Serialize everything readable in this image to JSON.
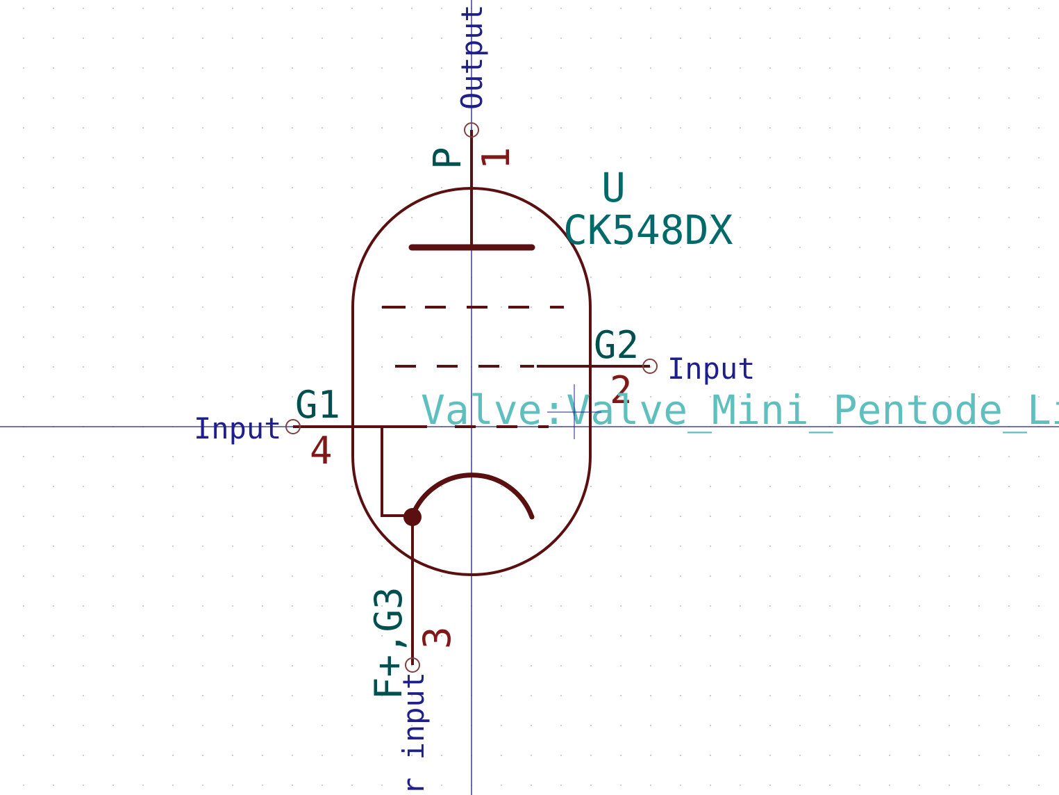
{
  "colors": {
    "background": "#ffffff",
    "grid": "#9a9a9a",
    "axis": "#1e1e8c",
    "body": "#5a1010",
    "pin_number": "#801818",
    "pin_name": "#005050",
    "reference": "#006a6a",
    "value": "#006a6a",
    "footprint": "#5fbfbf",
    "electrical_type": "#1e1e8c"
  },
  "symbol": {
    "reference": "U",
    "value": "CK548DX",
    "footprint": "Valve:Valve_Mini_Pentode_Lin",
    "pins": [
      {
        "number": "1",
        "name": "P",
        "type": "Output"
      },
      {
        "number": "2",
        "name": "G2",
        "type": "Input"
      },
      {
        "number": "3",
        "name": "F+,G3",
        "type": "r input"
      },
      {
        "number": "4",
        "name": "G1",
        "type": "Input"
      }
    ]
  }
}
